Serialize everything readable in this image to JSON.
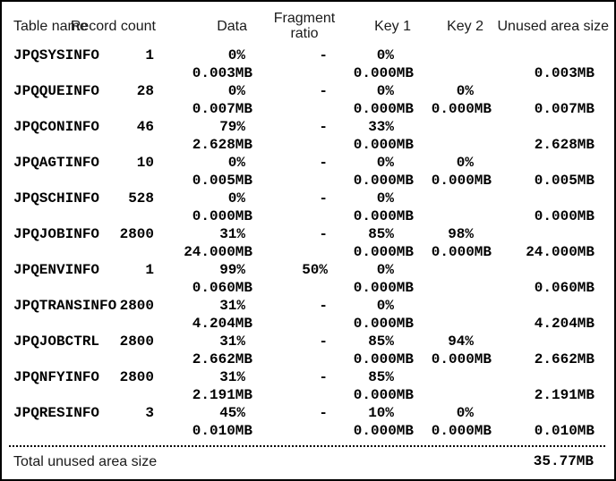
{
  "header": {
    "columns": {
      "table_name": "Table name",
      "record_count": "Record count",
      "data": "Data",
      "fragment_ratio_line1": "Fragment",
      "fragment_ratio_line2": "ratio",
      "key1": "Key 1",
      "key2": "Key 2",
      "unused_area_size": "Unused area size"
    }
  },
  "rows": [
    {
      "name": "JPQSYSINFO",
      "records": "1",
      "data_pct": "0%",
      "data_mb": "0.003MB",
      "frag": "-",
      "key1_pct": "0%",
      "key1_mb": "0.000MB",
      "key2_pct": "",
      "key2_mb": "",
      "unused_mb": "0.003MB"
    },
    {
      "name": "JPQQUEINFO",
      "records": "28",
      "data_pct": "0%",
      "data_mb": "0.007MB",
      "frag": "-",
      "key1_pct": "0%",
      "key1_mb": "0.000MB",
      "key2_pct": "0%",
      "key2_mb": "0.000MB",
      "unused_mb": "0.007MB"
    },
    {
      "name": "JPQCONINFO",
      "records": "46",
      "data_pct": "79%",
      "data_mb": "2.628MB",
      "frag": "-",
      "key1_pct": "33%",
      "key1_mb": "0.000MB",
      "key2_pct": "",
      "key2_mb": "",
      "unused_mb": "2.628MB"
    },
    {
      "name": "JPQAGTINFO",
      "records": "10",
      "data_pct": "0%",
      "data_mb": "0.005MB",
      "frag": "-",
      "key1_pct": "0%",
      "key1_mb": "0.000MB",
      "key2_pct": "0%",
      "key2_mb": "0.000MB",
      "unused_mb": "0.005MB"
    },
    {
      "name": "JPQSCHINFO",
      "records": "528",
      "data_pct": "0%",
      "data_mb": "0.000MB",
      "frag": "-",
      "key1_pct": "0%",
      "key1_mb": "0.000MB",
      "key2_pct": "",
      "key2_mb": "",
      "unused_mb": "0.000MB"
    },
    {
      "name": "JPQJOBINFO",
      "records": "2800",
      "data_pct": "31%",
      "data_mb": "24.000MB",
      "frag": "-",
      "key1_pct": "85%",
      "key1_mb": "0.000MB",
      "key2_pct": "98%",
      "key2_mb": "0.000MB",
      "unused_mb": "24.000MB"
    },
    {
      "name": "JPQENVINFO",
      "records": "1",
      "data_pct": "99%",
      "data_mb": "0.060MB",
      "frag": "50%",
      "key1_pct": "0%",
      "key1_mb": "0.000MB",
      "key2_pct": "",
      "key2_mb": "",
      "unused_mb": "0.060MB"
    },
    {
      "name": "JPQTRANSINFO",
      "records": "2800",
      "data_pct": "31%",
      "data_mb": "4.204MB",
      "frag": "-",
      "key1_pct": "0%",
      "key1_mb": "0.000MB",
      "key2_pct": "",
      "key2_mb": "",
      "unused_mb": "4.204MB"
    },
    {
      "name": "JPQJOBCTRL",
      "records": "2800",
      "data_pct": "31%",
      "data_mb": "2.662MB",
      "frag": "-",
      "key1_pct": "85%",
      "key1_mb": "0.000MB",
      "key2_pct": "94%",
      "key2_mb": "0.000MB",
      "unused_mb": "2.662MB"
    },
    {
      "name": "JPQNFYINFO",
      "records": "2800",
      "data_pct": "31%",
      "data_mb": "2.191MB",
      "frag": "-",
      "key1_pct": "85%",
      "key1_mb": "0.000MB",
      "key2_pct": "",
      "key2_mb": "",
      "unused_mb": "2.191MB"
    },
    {
      "name": "JPQRESINFO",
      "records": "3",
      "data_pct": "45%",
      "data_mb": "0.010MB",
      "frag": "-",
      "key1_pct": "10%",
      "key1_mb": "0.000MB",
      "key2_pct": "0%",
      "key2_mb": "0.000MB",
      "unused_mb": "0.010MB"
    }
  ],
  "footer": {
    "total_label": "Total unused area size",
    "total_value": "35.77MB"
  }
}
